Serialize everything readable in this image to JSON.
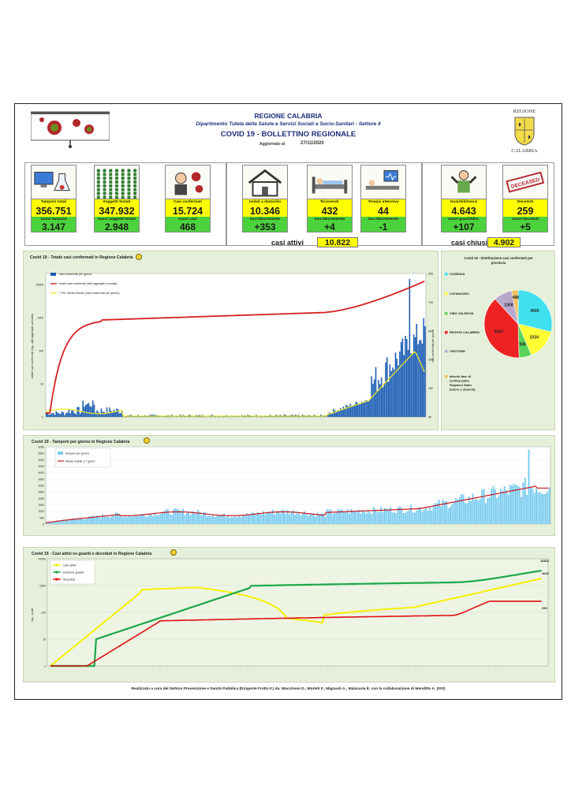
{
  "header": {
    "org": "REGIONE CALABRIA",
    "dept": "Dipartimento Tutela della Salute e Servizi Sociali e Socio-Sanitari - Settore 4",
    "title": "COVID 19 - BOLLETTINO REGIONALE",
    "update_label": "Aggiornato al",
    "update_date": "27/11/2020",
    "crest_title": "REGIONE",
    "crest_name": "CALABRIA"
  },
  "kpis": [
    {
      "label": "Tamponi totali",
      "value": "356.751",
      "sublabel": "nuovi tamponi",
      "delta": "3.147",
      "icon": "lab-computer-icon"
    },
    {
      "label": "Soggetti testati",
      "value": "347.932",
      "sublabel": "nuovi soggetti testati",
      "delta": "2.948",
      "icon": "people-grid-icon"
    },
    {
      "label": "Casi confermati",
      "value": "15.724",
      "sublabel": "nuovi casi",
      "delta": "468",
      "icon": "virus-person-icon"
    },
    {
      "label": "Isolati a domicilio",
      "value": "10.346",
      "sublabel": "incr./decremento",
      "delta": "+353",
      "icon": "house-icon"
    },
    {
      "label": "Ricoverati",
      "value": "432",
      "sublabel": "incr./decremento",
      "delta": "+4",
      "icon": "hospital-bed-icon"
    },
    {
      "label": "Terapia intensiva",
      "value": "44",
      "sublabel": "incr./decremento",
      "delta": "-1",
      "icon": "icu-icon"
    },
    {
      "label": "Guariti/dimessi",
      "value": "4.643",
      "sublabel": "nuovi guariti/dim.",
      "delta": "+107",
      "icon": "recovered-person-icon"
    },
    {
      "label": "Deceduti",
      "value": "259",
      "sublabel": "nuovi deceduti",
      "delta": "+5",
      "icon": "deceased-stamp-icon"
    }
  ],
  "summary": {
    "attivi_label": "casi attivi",
    "attivi_value": "10.822",
    "chiusi_label": "casi chiusi",
    "chiusi_value": "4.902"
  },
  "panel1": {
    "title": "Covid 19 - Totale casi confermati in Regione Calabria",
    "legend": [
      "casi confermati per giorno",
      "totale casi confermati (dati aggregati cumulati)",
      "7 Per. Media Mobile (casi confermati per giorno)"
    ],
    "left_axis_title": "totale casi confermati (log - dati aggregati cumulati)",
    "right_axis_title": "casi confermati per giorno",
    "left_ticks": [
      "10000",
      "1000",
      "100",
      "10",
      "1"
    ],
    "right_ticks": [
      "950",
      "750",
      "550",
      "350",
      "150",
      "50"
    ]
  },
  "pie": {
    "title": "Covid 19 - Distribuzione casi confermati per provincia",
    "legend": [
      "COSENZA",
      "CATANZARO",
      "VIBO VALENTIA",
      "REGGIO CALABRIA",
      "CROTONE",
      "altro/in fase di verifica (altra Regione/ Stato Estero e sbarchi)"
    ],
    "colors": [
      "#3fe0ef",
      "#ffff33",
      "#5ad35a",
      "#ee2222",
      "#b8a8cc",
      "#f0c060"
    ],
    "values": [
      4505,
      2324,
      936,
      6043,
      1368,
      488
    ],
    "labels": [
      "4505",
      "2324",
      "936",
      "6043",
      "1368",
      "488"
    ]
  },
  "panel2": {
    "title": "Covid 19 - Tamponi per giorno in Regione Calabria",
    "legend": [
      "tamponi per giorno",
      "Media mobile a 7 giorni"
    ],
    "y_ticks": [
      "6000",
      "5500",
      "5000",
      "4500",
      "4000",
      "3500",
      "3000",
      "2500",
      "2000",
      "1500",
      "1000",
      "500",
      "0"
    ]
  },
  "panel3": {
    "title": "Covid 19 - Casi attivi vs guariti e deceduti in Regione Calabria",
    "legend": [
      "casi attivi",
      "Dimessi guariti",
      "deceduti"
    ],
    "y_axis_title": "log - scale",
    "y_ticks": [
      "10000",
      "1000",
      "100",
      "10",
      "1"
    ],
    "end_labels": [
      "10822",
      "4643",
      "259"
    ],
    "colors": [
      "#f5f000",
      "#1aa84a",
      "#dd1111"
    ]
  },
  "footer": "Realizzato a cura del Settore Prevenzione e Sanità Pubblica (Dirigente Fratto F.) da:  Macchioni D., Morteti F., Mignuoli A., Malacaria E. con la collaborazione di Menditto A. (ISS)"
}
